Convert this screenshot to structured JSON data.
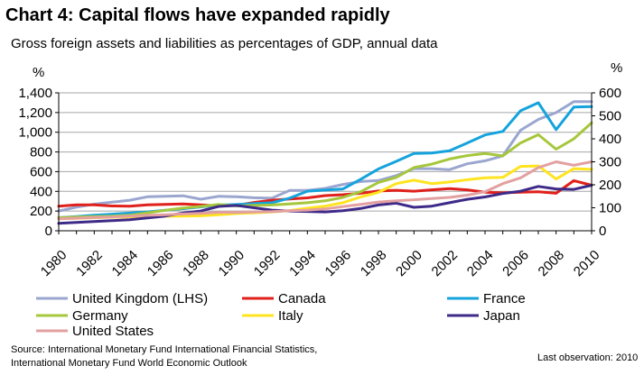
{
  "title": "Chart 4: Capital flows have expanded rapidly",
  "subtitle": "Gross foreign assets and liabilities as percentages of GDP, annual data",
  "source": [
    "Source: International Monetary Fund International Financial Statistics,",
    "International Monetary Fund World Economic Outlook"
  ],
  "last_observation": "Last observation: 2010",
  "colors": {
    "grid": "#a6a6a6",
    "axis": "#000000",
    "United Kingdom (LHS)": "#9aa6cf",
    "Canada": "#e0201b",
    "France": "#14a3dc",
    "Germany": "#a6c73c",
    "Italy": "#ffe41f",
    "Japan": "#3e2a88",
    "United States": "#e3a0a0"
  },
  "chart_data": {
    "type": "line",
    "title": "Chart 4: Capital flows have expanded rapidly",
    "subtitle": "Gross foreign assets and liabilities as percentages of GDP, annual data",
    "x": [
      1980,
      1981,
      1982,
      1983,
      1984,
      1985,
      1986,
      1987,
      1988,
      1989,
      1990,
      1991,
      1992,
      1993,
      1994,
      1995,
      1996,
      1997,
      1998,
      1999,
      2000,
      2001,
      2002,
      2003,
      2004,
      2005,
      2006,
      2007,
      2008,
      2009,
      2010
    ],
    "x_tick_labels": [
      "1980",
      "1982",
      "1984",
      "1986",
      "1988",
      "1990",
      "1992",
      "1994",
      "1996",
      "1998",
      "2000",
      "2002",
      "2004",
      "2006",
      "2008",
      "2010"
    ],
    "y_left": {
      "label": "%",
      "lim": [
        0,
        1400
      ],
      "ticks": [
        "0",
        "200",
        "400",
        "600",
        "800",
        "1,000",
        "1,200",
        "1,400"
      ]
    },
    "y_right": {
      "label": "%",
      "lim": [
        0,
        600
      ],
      "ticks": [
        "0",
        "100",
        "200",
        "300",
        "400",
        "500",
        "600"
      ]
    },
    "grid": true,
    "legend_position": "bottom",
    "series": [
      {
        "name": "United Kingdom (LHS)",
        "axis": "left",
        "values": [
          200,
          240,
          270,
          290,
          310,
          345,
          350,
          355,
          320,
          350,
          345,
          335,
          330,
          410,
          410,
          430,
          470,
          500,
          510,
          560,
          630,
          630,
          620,
          680,
          710,
          760,
          1020,
          1130,
          1200,
          1310,
          1310
        ]
      },
      {
        "name": "Canada",
        "axis": "right",
        "values": [
          107,
          113,
          113,
          108,
          107,
          113,
          115,
          117,
          113,
          108,
          110,
          123,
          133,
          138,
          143,
          153,
          157,
          163,
          173,
          176,
          172,
          178,
          183,
          178,
          168,
          165,
          168,
          170,
          163,
          218,
          198
        ]
      },
      {
        "name": "France",
        "axis": "right",
        "values": [
          57,
          62,
          68,
          72,
          77,
          82,
          89,
          96,
          104,
          112,
          114,
          118,
          122,
          142,
          172,
          177,
          182,
          224,
          269,
          302,
          336,
          338,
          348,
          382,
          417,
          432,
          522,
          557,
          440,
          538,
          540
        ]
      },
      {
        "name": "Germany",
        "axis": "right",
        "values": [
          57,
          60,
          62,
          64,
          68,
          78,
          89,
          99,
          106,
          114,
          108,
          110,
          112,
          117,
          122,
          130,
          145,
          170,
          210,
          232,
          275,
          290,
          312,
          327,
          336,
          326,
          382,
          418,
          355,
          400,
          470
        ]
      },
      {
        "name": "Italy",
        "axis": "right",
        "values": [
          52,
          54,
          57,
          59,
          60,
          61,
          63,
          64,
          65,
          70,
          75,
          78,
          82,
          88,
          98,
          107,
          122,
          147,
          167,
          205,
          220,
          205,
          212,
          222,
          230,
          232,
          280,
          282,
          225,
          270,
          267
        ]
      },
      {
        "name": "Japan",
        "axis": "right",
        "values": [
          32,
          36,
          40,
          44,
          48,
          56,
          64,
          77,
          86,
          106,
          110,
          100,
          90,
          86,
          84,
          82,
          87,
          97,
          112,
          120,
          102,
          107,
          122,
          137,
          147,
          162,
          172,
          193,
          182,
          180,
          198
        ]
      },
      {
        "name": "United States",
        "axis": "right",
        "values": [
          52,
          55,
          58,
          60,
          64,
          67,
          70,
          73,
          76,
          80,
          80,
          82,
          83,
          87,
          90,
          95,
          105,
          115,
          125,
          130,
          135,
          140,
          145,
          155,
          170,
          205,
          230,
          275,
          300,
          285,
          300
        ]
      }
    ]
  }
}
